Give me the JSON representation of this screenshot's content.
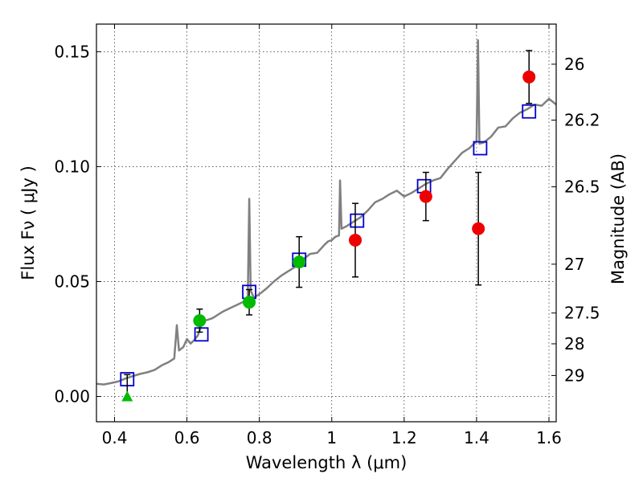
{
  "chart_data": {
    "type": "scatter",
    "xlabel": "Wavelength  λ (μm)",
    "ylabel": "Flux  Fν  ( μJy )",
    "ylabel_right": "Magnitude (AB)",
    "xlim": [
      0.35,
      1.62
    ],
    "ylim": [
      -0.011,
      0.162
    ],
    "x_ticks": [
      0.4,
      0.6,
      0.8,
      1.0,
      1.2,
      1.4,
      1.6
    ],
    "x_tick_labels": [
      "0.4",
      "0.6",
      "0.8",
      "1",
      "1.2",
      "1.4",
      "1.6"
    ],
    "y_ticks": [
      0.0,
      0.05,
      0.1,
      0.15
    ],
    "y_tick_labels": [
      "0.00",
      "0.05",
      "0.10",
      "0.15"
    ],
    "right_ticks": [
      {
        "label": "26",
        "mag": 26.0
      },
      {
        "label": "26.2",
        "mag": 26.2
      },
      {
        "label": "26.5",
        "mag": 26.5
      },
      {
        "label": "27",
        "mag": 27.0
      },
      {
        "label": "27.5",
        "mag": 27.5
      },
      {
        "label": "28",
        "mag": 28.0
      },
      {
        "label": "29",
        "mag": 29.0
      }
    ],
    "grid": true,
    "series": [
      {
        "kind": "spectrum-line",
        "color": "#808080",
        "points": [
          [
            0.35,
            0.0055
          ],
          [
            0.37,
            0.0052
          ],
          [
            0.39,
            0.0058
          ],
          [
            0.41,
            0.0065
          ],
          [
            0.43,
            0.0078
          ],
          [
            0.45,
            0.0088
          ],
          [
            0.47,
            0.0098
          ],
          [
            0.49,
            0.0105
          ],
          [
            0.51,
            0.0115
          ],
          [
            0.53,
            0.0135
          ],
          [
            0.55,
            0.015
          ],
          [
            0.565,
            0.0165
          ],
          [
            0.572,
            0.031
          ],
          [
            0.578,
            0.02
          ],
          [
            0.59,
            0.0215
          ],
          [
            0.6,
            0.025
          ],
          [
            0.61,
            0.023
          ],
          [
            0.62,
            0.0245
          ],
          [
            0.63,
            0.0265
          ],
          [
            0.64,
            0.031
          ],
          [
            0.65,
            0.033
          ],
          [
            0.66,
            0.0335
          ],
          [
            0.67,
            0.034
          ],
          [
            0.68,
            0.035
          ],
          [
            0.69,
            0.036
          ],
          [
            0.7,
            0.037
          ],
          [
            0.72,
            0.0385
          ],
          [
            0.74,
            0.04
          ],
          [
            0.76,
            0.0415
          ],
          [
            0.768,
            0.043
          ],
          [
            0.772,
            0.086
          ],
          [
            0.776,
            0.046
          ],
          [
            0.785,
            0.043
          ],
          [
            0.8,
            0.0445
          ],
          [
            0.82,
            0.047
          ],
          [
            0.84,
            0.05
          ],
          [
            0.86,
            0.0525
          ],
          [
            0.88,
            0.0545
          ],
          [
            0.9,
            0.0565
          ],
          [
            0.92,
            0.0595
          ],
          [
            0.94,
            0.062
          ],
          [
            0.96,
            0.0625
          ],
          [
            0.98,
            0.066
          ],
          [
            0.99,
            0.0675
          ],
          [
            1.0,
            0.068
          ],
          [
            1.01,
            0.0695
          ],
          [
            1.02,
            0.07
          ],
          [
            1.023,
            0.094
          ],
          [
            1.027,
            0.073
          ],
          [
            1.04,
            0.074
          ],
          [
            1.06,
            0.076
          ],
          [
            1.08,
            0.078
          ],
          [
            1.1,
            0.081
          ],
          [
            1.12,
            0.0845
          ],
          [
            1.14,
            0.086
          ],
          [
            1.16,
            0.088
          ],
          [
            1.18,
            0.0895
          ],
          [
            1.2,
            0.087
          ],
          [
            1.22,
            0.0885
          ],
          [
            1.24,
            0.0905
          ],
          [
            1.26,
            0.0925
          ],
          [
            1.28,
            0.094
          ],
          [
            1.3,
            0.095
          ],
          [
            1.32,
            0.099
          ],
          [
            1.34,
            0.1025
          ],
          [
            1.36,
            0.106
          ],
          [
            1.38,
            0.108
          ],
          [
            1.4,
            0.111
          ],
          [
            1.404,
            0.155
          ],
          [
            1.408,
            0.11
          ],
          [
            1.42,
            0.1105
          ],
          [
            1.44,
            0.113
          ],
          [
            1.46,
            0.117
          ],
          [
            1.48,
            0.1175
          ],
          [
            1.5,
            0.121
          ],
          [
            1.52,
            0.1235
          ],
          [
            1.54,
            0.125
          ],
          [
            1.56,
            0.127
          ],
          [
            1.58,
            0.1265
          ],
          [
            1.6,
            0.1295
          ],
          [
            1.62,
            0.127
          ]
        ]
      },
      {
        "kind": "open-squares",
        "color": "#0000cc",
        "points": [
          [
            0.435,
            0.0075
          ],
          [
            0.64,
            0.027
          ],
          [
            0.772,
            0.0455
          ],
          [
            0.91,
            0.0595
          ],
          [
            1.07,
            0.0765
          ],
          [
            1.255,
            0.0915
          ],
          [
            1.41,
            0.108
          ],
          [
            1.545,
            0.124
          ]
        ]
      },
      {
        "kind": "filled-circles",
        "color": "#00bb00",
        "points": [
          {
            "x": 0.635,
            "y": 0.033,
            "err": 0.005
          },
          {
            "x": 0.772,
            "y": 0.041,
            "err": 0.0055
          },
          {
            "x": 0.91,
            "y": 0.0585,
            "err": 0.011
          }
        ]
      },
      {
        "kind": "filled-circles",
        "color": "#ee0000",
        "points": [
          {
            "x": 1.065,
            "y": 0.068,
            "err": 0.016
          },
          {
            "x": 1.26,
            "y": 0.087,
            "err": 0.0105
          },
          {
            "x": 1.405,
            "y": 0.073,
            "err": 0.0245
          },
          {
            "x": 1.545,
            "y": 0.139,
            "err": 0.0115
          }
        ]
      },
      {
        "kind": "triangle-upper-limit",
        "color": "#00bb00",
        "points": [
          {
            "x": 0.435,
            "y": 0.0,
            "err_up": 0.0095
          }
        ]
      }
    ]
  }
}
